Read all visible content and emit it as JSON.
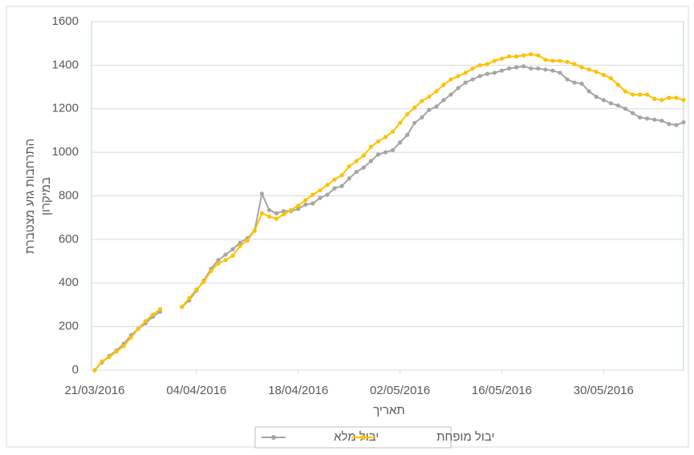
{
  "chart_data": {
    "type": "line",
    "xlabel": "תאריך",
    "ylabel": [
      "התרחבות גזע מצטברת",
      "במיקרון"
    ],
    "x": [
      "21/03/2016",
      "22/03/2016",
      "23/03/2016",
      "24/03/2016",
      "25/03/2016",
      "26/03/2016",
      "27/03/2016",
      "28/03/2016",
      "29/03/2016",
      "30/03/2016",
      "31/03/2016",
      "01/04/2016",
      "02/04/2016",
      "03/04/2016",
      "04/04/2016",
      "05/04/2016",
      "06/04/2016",
      "07/04/2016",
      "08/04/2016",
      "09/04/2016",
      "10/04/2016",
      "11/04/2016",
      "12/04/2016",
      "13/04/2016",
      "14/04/2016",
      "15/04/2016",
      "16/04/2016",
      "17/04/2016",
      "18/04/2016",
      "19/04/2016",
      "20/04/2016",
      "21/04/2016",
      "22/04/2016",
      "23/04/2016",
      "24/04/2016",
      "25/04/2016",
      "26/04/2016",
      "27/04/2016",
      "28/04/2016",
      "29/04/2016",
      "30/04/2016",
      "01/05/2016",
      "02/05/2016",
      "03/05/2016",
      "04/05/2016",
      "05/05/2016",
      "06/05/2016",
      "07/05/2016",
      "08/05/2016",
      "09/05/2016",
      "10/05/2016",
      "11/05/2016",
      "12/05/2016",
      "13/05/2016",
      "14/05/2016",
      "15/05/2016",
      "16/05/2016",
      "17/05/2016",
      "18/05/2016",
      "19/05/2016",
      "20/05/2016",
      "21/05/2016",
      "22/05/2016",
      "23/05/2016",
      "24/05/2016",
      "25/05/2016",
      "26/05/2016",
      "27/05/2016",
      "28/05/2016",
      "29/05/2016",
      "30/05/2016",
      "31/05/2016",
      "01/06/2016",
      "02/06/2016",
      "03/06/2016",
      "04/06/2016",
      "05/06/2016",
      "06/06/2016",
      "07/06/2016",
      "08/06/2016",
      "09/06/2016",
      "10/06/2016"
    ],
    "series": [
      {
        "name": "יבול מלא",
        "color": "#a5a5a5",
        "values": [
          0,
          35,
          65,
          90,
          120,
          160,
          190,
          215,
          245,
          268,
          null,
          null,
          290,
          320,
          365,
          410,
          465,
          505,
          530,
          555,
          585,
          605,
          640,
          810,
          735,
          720,
          730,
          730,
          740,
          760,
          765,
          790,
          805,
          835,
          845,
          880,
          910,
          930,
          960,
          990,
          1000,
          1010,
          1045,
          1080,
          1135,
          1160,
          1195,
          1210,
          1240,
          1265,
          1295,
          1320,
          1335,
          1350,
          1360,
          1365,
          1375,
          1385,
          1390,
          1395,
          1385,
          1385,
          1380,
          1375,
          1365,
          1335,
          1320,
          1315,
          1280,
          1255,
          1240,
          1225,
          1215,
          1200,
          1180,
          1160,
          1155,
          1150,
          1145,
          1130,
          1125,
          1138
        ]
      },
      {
        "name": "יבול מופחת",
        "color": "#ffc000",
        "values": [
          0,
          40,
          60,
          85,
          110,
          150,
          190,
          225,
          255,
          280,
          null,
          null,
          290,
          330,
          370,
          405,
          455,
          490,
          505,
          525,
          570,
          595,
          640,
          720,
          705,
          695,
          715,
          735,
          755,
          780,
          805,
          825,
          850,
          875,
          895,
          935,
          960,
          985,
          1025,
          1050,
          1070,
          1095,
          1135,
          1175,
          1205,
          1235,
          1255,
          1280,
          1310,
          1335,
          1350,
          1365,
          1385,
          1400,
          1405,
          1420,
          1430,
          1440,
          1440,
          1445,
          1450,
          1445,
          1425,
          1420,
          1420,
          1415,
          1405,
          1390,
          1380,
          1370,
          1355,
          1340,
          1310,
          1280,
          1265,
          1265,
          1265,
          1245,
          1240,
          1250,
          1250,
          1240
        ]
      }
    ],
    "xlim": [
      "21/03/2016",
      "10/06/2016"
    ],
    "xticks": [
      "21/03/2016",
      "04/04/2016",
      "18/04/2016",
      "02/05/2016",
      "16/05/2016",
      "30/05/2016"
    ],
    "ylim": [
      0,
      1600
    ],
    "yticks": [
      0,
      200,
      400,
      600,
      800,
      1000,
      1200,
      1400,
      1600
    ],
    "grid": true,
    "legend": "bottom"
  }
}
